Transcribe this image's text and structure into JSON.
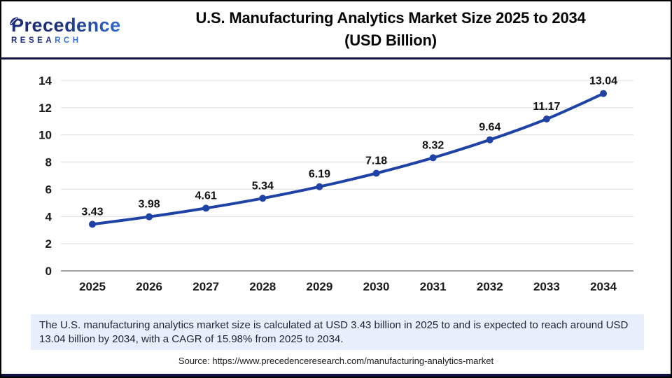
{
  "header": {
    "logo": {
      "brand": "Precedence",
      "research_dark": "RESEA",
      "research_light": "RCH"
    },
    "title_line1": "U.S. Manufacturing Analytics Market Size 2025 to 2034",
    "title_line2": "(USD Billion)"
  },
  "chart_data": {
    "type": "line",
    "title": "U.S. Manufacturing Analytics Market Size 2025 to 2034 (USD Billion)",
    "categories": [
      "2025",
      "2026",
      "2027",
      "2028",
      "2029",
      "2030",
      "2031",
      "2032",
      "2033",
      "2034"
    ],
    "values": [
      3.43,
      3.98,
      4.61,
      5.34,
      6.19,
      7.18,
      8.32,
      9.64,
      11.17,
      13.04
    ],
    "xlabel": "",
    "ylabel": "",
    "ylim": [
      0,
      14
    ],
    "ytick_step": 2,
    "grid": true,
    "legend": "none",
    "line_color": "#1f42a6",
    "marker_color": "#1f42a6",
    "label_color": "#111111",
    "axis_color": "#a3a3a3",
    "grid_color": "#dcdcdc",
    "tick_label_color": "#1a1a1a"
  },
  "note": {
    "text": "The U.S. manufacturing analytics market size is calculated at USD 3.43 billion in 2025 to and is expected to reach around USD 13.04 billion by 2034, with a CAGR of 15.98% from 2025 to 2034."
  },
  "source": {
    "text": "Source: https://www.precedenceresearch.com/manufacturing-analytics-market"
  },
  "colors": {
    "divider_navy": "#14144a",
    "note_background": "#e7f0fa",
    "logo_dark_blue": "#1c2e77",
    "logo_light_blue": "#2e73d6",
    "line_blue": "#1f42a6"
  }
}
